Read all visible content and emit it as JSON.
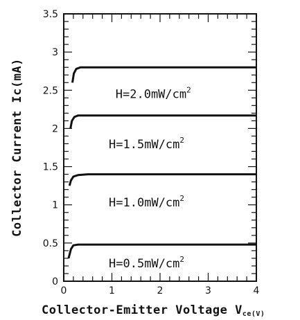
{
  "chart_data": {
    "type": "line",
    "title": "",
    "xlabel": "Collector-Emitter Voltage",
    "xlabel_symbol": "V",
    "xlabel_subscript": "ce",
    "xlabel_unit": "(V)",
    "ylabel": "Collector Current Ic(mA)",
    "xlim": [
      0,
      4
    ],
    "ylim": [
      0,
      3.5
    ],
    "x_ticks": [
      "0",
      "1",
      "2",
      "3",
      "4"
    ],
    "y_ticks": [
      "0",
      "0.5",
      "1",
      "1.5",
      "2",
      "2.5",
      "3",
      "3.5"
    ],
    "grid": false,
    "series": [
      {
        "name": "H=0.5mW/cm",
        "superscript": "2",
        "x": [
          0.1,
          0.15,
          0.2,
          0.3,
          0.5,
          4.0
        ],
        "y": [
          0.3,
          0.42,
          0.47,
          0.48,
          0.48,
          0.48
        ]
      },
      {
        "name": "H=1.0mW/cm",
        "superscript": "2",
        "x": [
          0.12,
          0.15,
          0.2,
          0.3,
          0.5,
          4.0
        ],
        "y": [
          1.25,
          1.32,
          1.37,
          1.39,
          1.4,
          1.4
        ]
      },
      {
        "name": "H=1.5mW/cm",
        "superscript": "2",
        "x": [
          0.14,
          0.17,
          0.22,
          0.3,
          0.5,
          4.0
        ],
        "y": [
          2.0,
          2.1,
          2.15,
          2.17,
          2.17,
          2.17
        ]
      },
      {
        "name": "H=2.0mW/cm",
        "superscript": "2",
        "x": [
          0.18,
          0.21,
          0.26,
          0.35,
          0.5,
          4.0
        ],
        "y": [
          2.6,
          2.72,
          2.78,
          2.8,
          2.8,
          2.8
        ]
      }
    ]
  }
}
